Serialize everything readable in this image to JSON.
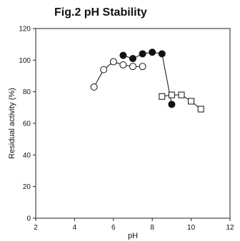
{
  "chart_data": {
    "type": "scatter",
    "title": "Fig.2 pH Stability",
    "xlabel": "pH",
    "ylabel": "Residual activity (%)",
    "xlim": [
      2,
      12
    ],
    "ylim": [
      0,
      120
    ],
    "xticks": [
      "2",
      "4",
      "6",
      "8",
      "10",
      "12"
    ],
    "yticks": [
      "0",
      "20",
      "40",
      "60",
      "80",
      "100",
      "120"
    ],
    "grid": false,
    "series": [
      {
        "marker": "open-circle",
        "x": [
          5.0,
          5.5,
          6.0,
          6.5,
          7.0,
          7.5
        ],
        "y": [
          83,
          94,
          99,
          97,
          96,
          96
        ]
      },
      {
        "marker": "filled-circle",
        "x": [
          6.5,
          7.0,
          7.5,
          8.0,
          8.5,
          9.0
        ],
        "y": [
          103,
          101,
          104,
          105,
          104,
          72
        ]
      },
      {
        "marker": "open-square",
        "x": [
          8.5,
          9.0,
          9.5,
          10.0,
          10.5
        ],
        "y": [
          77,
          78,
          78,
          74,
          69
        ]
      }
    ]
  }
}
